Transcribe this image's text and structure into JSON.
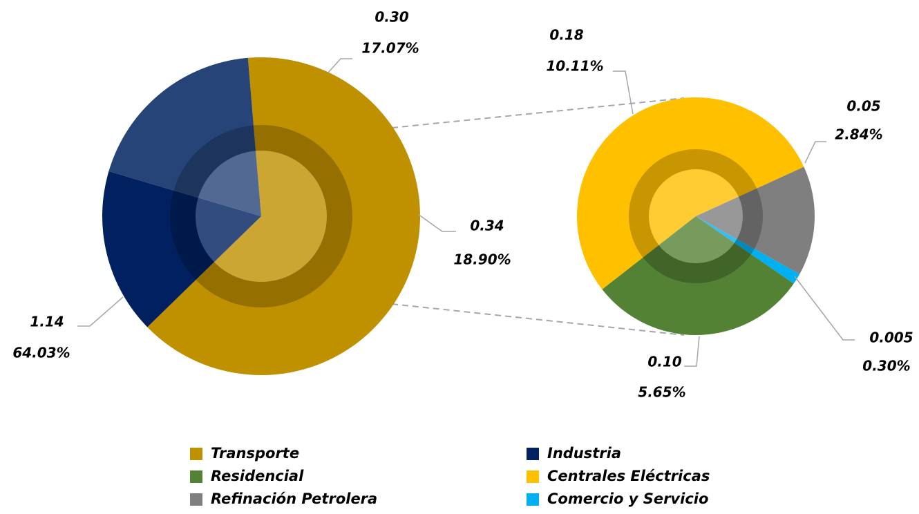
{
  "chart_data": {
    "type": "pie-of-pie",
    "pies": [
      {
        "categories": [
          "Transporte",
          "Industria",
          null
        ],
        "values": [
          1.14,
          0.3,
          0.34
        ],
        "value_labels": [
          "1.14",
          "0.30",
          "0.34"
        ],
        "percents": [
          64.03,
          17.07,
          18.9
        ],
        "percent_labels": [
          "64.03%",
          "17.07%",
          "18.90%"
        ],
        "colors": [
          "#bf9000",
          "#002060",
          "#264478"
        ]
      },
      {
        "categories": [
          "Centrales Eléctricas",
          "Refinación Petrolera",
          "Comercio y Servicio",
          "Residencial"
        ],
        "values": [
          0.18,
          0.05,
          0.005,
          0.1
        ],
        "value_labels": [
          "0.18",
          "0.05",
          "0.005",
          "0.10"
        ],
        "percents": [
          10.11,
          2.84,
          0.3,
          5.65
        ],
        "percent_labels": [
          "10.11%",
          "2.84%",
          "0.30%",
          "5.65%"
        ],
        "colors": [
          "#ffc000",
          "#7f7f7f",
          "#00b0f0",
          "#548235"
        ]
      }
    ]
  }
}
